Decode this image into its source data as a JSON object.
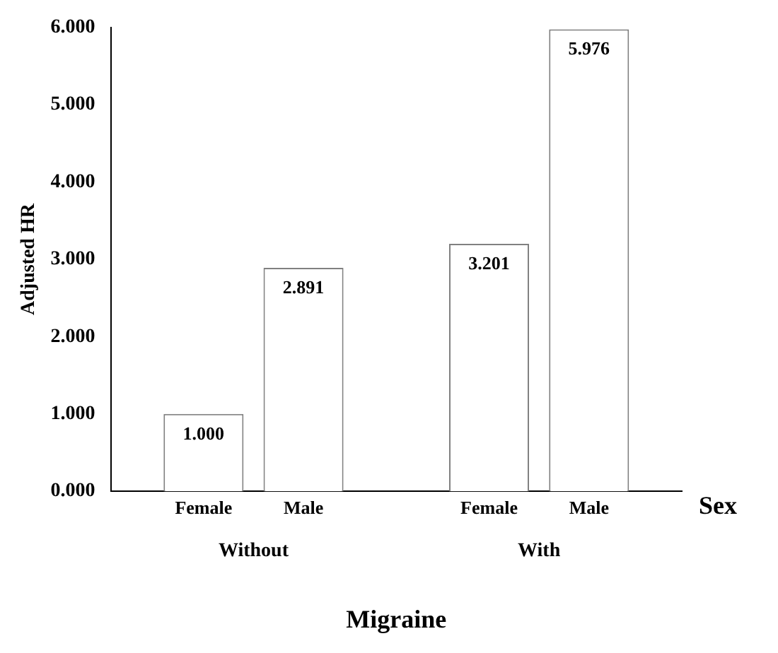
{
  "chart_data": {
    "type": "bar",
    "xlabel": "Migraine",
    "ylabel": "Adjusted HR",
    "legend_title": "Sex",
    "categories": [
      "Without",
      "With"
    ],
    "series": [
      {
        "name": "Female",
        "color": "#ffffff",
        "values": [
          1.0,
          3.201
        ],
        "value_labels": [
          "1.000",
          "3.201"
        ]
      },
      {
        "name": "Male",
        "color": "#ffffff",
        "values": [
          2.891,
          5.976
        ],
        "value_labels": [
          "2.891",
          "5.976"
        ]
      }
    ],
    "ylim": [
      0,
      6
    ],
    "yticks": [
      {
        "value": 0,
        "label": "0.000"
      },
      {
        "value": 1,
        "label": "1.000"
      },
      {
        "value": 2,
        "label": "2.000"
      },
      {
        "value": 3,
        "label": "3.000"
      },
      {
        "value": 4,
        "label": "4.000"
      },
      {
        "value": 5,
        "label": "5.000"
      },
      {
        "value": 6,
        "label": "6.000"
      }
    ]
  }
}
